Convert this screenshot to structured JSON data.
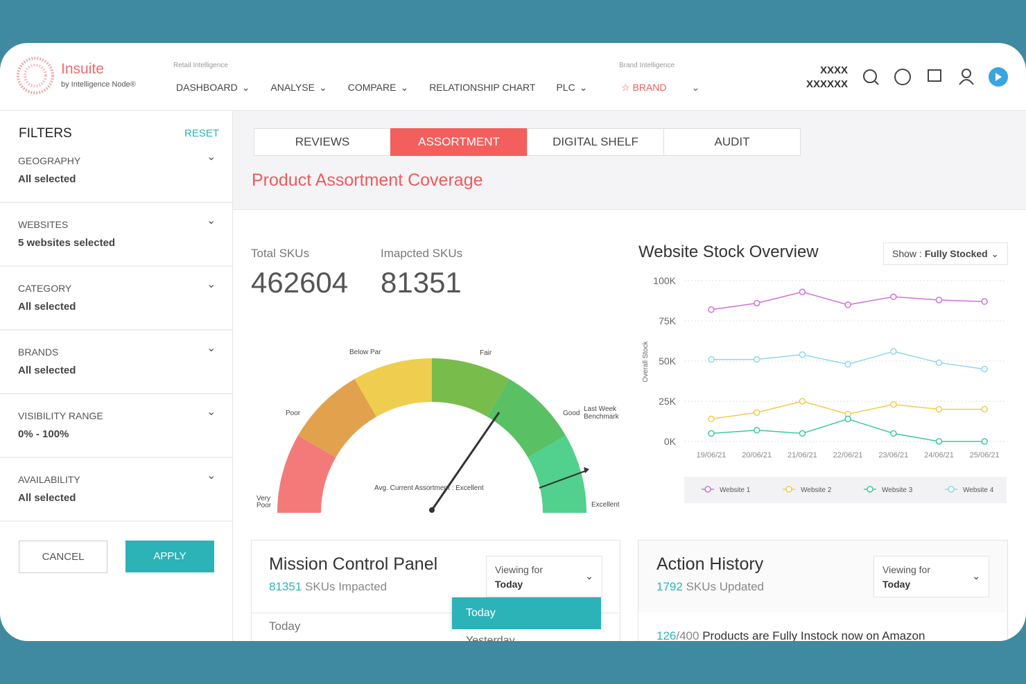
{
  "header": {
    "logo": "Insuite",
    "logo_sub": "by Intelligence Node®",
    "retail_label": "Retail Intelligence",
    "nav": [
      "DASHBOARD",
      "ANALYSE",
      "COMPARE",
      "RELATIONSHIP CHART",
      "PLC"
    ],
    "brand_label": "Brand Intelligence",
    "brand": "BRAND",
    "user_line1": "XXXX",
    "user_line2": "XXXXXX"
  },
  "filters": {
    "title": "FILTERS",
    "reset": "RESET",
    "items": [
      {
        "label": "GEOGRAPHY",
        "value": "All selected"
      },
      {
        "label": "WEBSITES",
        "value": "5 websites selected"
      },
      {
        "label": "CATEGORY",
        "value": "All selected"
      },
      {
        "label": "BRANDS",
        "value": "All selected"
      },
      {
        "label": "VISIBILITY RANGE",
        "value": "0% - 100%"
      },
      {
        "label": "AVAILABILITY",
        "value": "All selected"
      }
    ],
    "cancel": "CANCEL",
    "apply": "APPLY"
  },
  "tabs": [
    "REVIEWS",
    "ASSORTMENT",
    "DIGITAL SHELF",
    "AUDIT"
  ],
  "section_title": "Product Assortment Coverage",
  "kpis": [
    {
      "label": "Total SKUs",
      "value": 462604
    },
    {
      "label": "Imapcted SKUs",
      "value": 81351
    }
  ],
  "gauge": {
    "labels": [
      "Very Poor",
      "Poor",
      "Below Par",
      "Fair",
      "Good",
      "Excellent"
    ],
    "benchmark": "Last Week Benchmark",
    "caption": "Avg. Current Assortment : Excellent"
  },
  "stock_chart": {
    "type": "line",
    "title": "Website Stock Overview",
    "show_label": "Show :",
    "show_value": "Fully Stocked",
    "y_label": "Overall Stock",
    "categories": [
      "19/06/21",
      "20/06/21",
      "21/06/21",
      "22/06/21",
      "23/06/21",
      "24/06/21",
      "25/06/21"
    ],
    "series": [
      {
        "name": "Website 1",
        "color": "#d36fd8",
        "values": [
          82000,
          86000,
          93000,
          85000,
          90000,
          88000,
          87000
        ]
      },
      {
        "name": "Website 2",
        "color": "#f0cc4a",
        "values": [
          14000,
          18000,
          25000,
          17000,
          23000,
          20000,
          20000
        ]
      },
      {
        "name": "Website 3",
        "color": "#3fc99a",
        "values": [
          5000,
          7000,
          5000,
          14000,
          5000,
          0,
          0
        ]
      },
      {
        "name": "Website 4",
        "color": "#8fd6ea",
        "values": [
          51000,
          51000,
          54000,
          48000,
          56000,
          49000,
          45000
        ]
      }
    ],
    "ylim": [
      0,
      100000
    ],
    "yticks": [
      {
        "value": 0,
        "label": "0K"
      },
      {
        "value": 25000,
        "label": "25K"
      },
      {
        "value": 50000,
        "label": "50K"
      },
      {
        "value": 75000,
        "label": "75K"
      },
      {
        "value": 100000,
        "label": "100K"
      }
    ],
    "grid": true
  },
  "mission": {
    "title": "Mission Control Panel",
    "count": 81351,
    "count_text": "SKUs Impacted",
    "viewing_label": "Viewing for",
    "viewing_value": "Today",
    "row": "Today",
    "options": [
      "Today",
      "Yesterday"
    ]
  },
  "action": {
    "title": "Action History",
    "count": 1792,
    "count_text": "SKUs Updated",
    "viewing_label": "Viewing for",
    "viewing_value": "Today",
    "done": 126,
    "total_label": "/400",
    "line_text": "Products are Fully Instock now on Amazon"
  }
}
